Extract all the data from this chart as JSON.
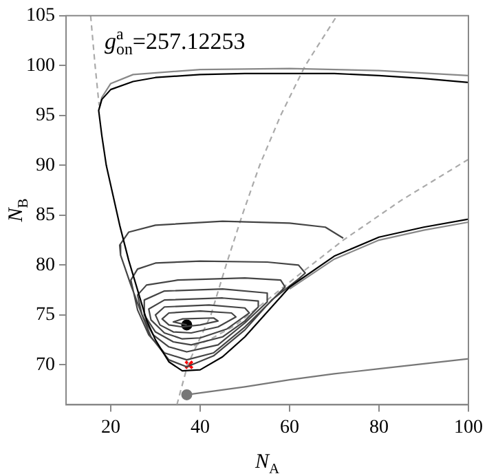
{
  "chart_data": {
    "type": "line",
    "xlabel": "N$_{A}$",
    "ylabel": "N$_{B}$",
    "annotations": [
      "g$_{on}$$^{a}$=257.12253"
    ],
    "xlim": [
      10,
      100
    ],
    "xticks": [
      20,
      40,
      60,
      80,
      100
    ],
    "ylim": [
      66,
      105
    ],
    "yticks": [
      70,
      75,
      80,
      85,
      90,
      95,
      100,
      105
    ],
    "grid": false,
    "legend": false,
    "marker": "none",
    "line_style": "solid",
    "series": [
      {
        "color": "#000000",
        "x": [
          100,
          90,
          80,
          70,
          60,
          50,
          40,
          30,
          25,
          20,
          18,
          17.3,
          18,
          19,
          20.5,
          22,
          24,
          26,
          28,
          30,
          33,
          36,
          40,
          45,
          50,
          55,
          60,
          70,
          80,
          90,
          100
        ],
        "values": [
          98.3,
          98.7,
          99,
          99.2,
          99.2,
          99.2,
          99.1,
          98.8,
          98.4,
          97.6,
          96.6,
          95.5,
          93,
          90,
          87,
          84,
          80.5,
          77.5,
          74.5,
          72.5,
          70.3,
          69.4,
          69.5,
          70.8,
          72.8,
          75.3,
          77.8,
          80.9,
          82.8,
          83.8,
          84.6
        ]
      },
      {
        "color": "#888888",
        "x": [
          100,
          80,
          60,
          40,
          25,
          20,
          18,
          17.5
        ],
        "values": [
          99,
          99.5,
          99.7,
          99.6,
          99.1,
          98.2,
          96.8,
          95.8
        ]
      },
      {
        "color": "#888888",
        "x": [
          60,
          70,
          80,
          90,
          100
        ],
        "values": [
          77.6,
          80.6,
          82.5,
          83.5,
          84.3
        ]
      },
      {
        "color": "#444444",
        "x": [
          72,
          68,
          60,
          45,
          30,
          24,
          22,
          22.2,
          24.5,
          27,
          29,
          33,
          37,
          43,
          50,
          56,
          62,
          63.5,
          62,
          55,
          40,
          30,
          26,
          24.5,
          26,
          28.5,
          32,
          37,
          43,
          50,
          55,
          59,
          58,
          50,
          35,
          28,
          26,
          27,
          29.5,
          33,
          37,
          44,
          50,
          55,
          55,
          45,
          32,
          27.5,
          27.5,
          30,
          34,
          38,
          45,
          50,
          53,
          53,
          45,
          32,
          28.5,
          29,
          32,
          36,
          40,
          46,
          51,
          50,
          42,
          32,
          30,
          31,
          34,
          38,
          44,
          48,
          47,
          40,
          33,
          31.5,
          33,
          36,
          40,
          44,
          43,
          36,
          34,
          37
        ],
        "values": [
          82.7,
          83.8,
          84.2,
          84.4,
          84,
          83.3,
          82,
          81,
          78,
          75,
          72.8,
          70.5,
          69.8,
          70.9,
          73.5,
          76.5,
          78.6,
          79.2,
          80,
          80.3,
          80.4,
          80.2,
          79.6,
          78.5,
          75.5,
          73,
          71.2,
          70.5,
          71.2,
          73.8,
          76,
          77.8,
          78.5,
          78.7,
          78.5,
          78,
          77,
          75,
          73,
          71.8,
          71.3,
          72,
          74.2,
          76.3,
          77.2,
          77.6,
          77.4,
          76.5,
          75,
          73.3,
          72.3,
          72,
          72.8,
          74.4,
          75.8,
          76.4,
          76.7,
          76.5,
          75.6,
          74.5,
          73.2,
          72.6,
          72.7,
          73.6,
          75.2,
          75.7,
          76,
          75.8,
          75,
          74,
          73.3,
          73.2,
          73.8,
          74.8,
          75.2,
          75.4,
          75.2,
          74.6,
          74,
          73.8,
          74,
          74.4,
          74.7,
          74.6,
          74.3,
          74
        ]
      },
      {
        "color": "#aaaaaa",
        "line_style": "dashed",
        "x": [
          34.8,
          37.2,
          42.4,
          45.8,
          49.4,
          53.3,
          58,
          63.5,
          70.6
        ],
        "values": [
          66,
          70,
          75,
          80,
          85,
          90,
          95,
          100,
          105
        ]
      },
      {
        "color": "#aaaaaa",
        "line_style": "dashed",
        "x": [
          15.5,
          16.5,
          17.4
        ],
        "values": [
          105,
          100,
          96
        ]
      },
      {
        "color": "#aaaaaa",
        "line_style": "dashed",
        "x": [
          100,
          85,
          72,
          62,
          55,
          48,
          42,
          38
        ],
        "values": [
          90.6,
          86.5,
          82.5,
          79,
          76.5,
          74,
          72.5,
          71.8
        ]
      },
      {
        "color": "#777777",
        "x": [
          37,
          50,
          60,
          70,
          80,
          90,
          100
        ],
        "values": [
          67,
          67.8,
          68.5,
          69.1,
          69.6,
          70.1,
          70.6
        ]
      },
      {
        "type": "scatter",
        "marker": "circle",
        "color": "#000000",
        "x": [
          37
        ],
        "values": [
          74
        ]
      },
      {
        "type": "scatter",
        "marker": "cross",
        "color": "#ff0000",
        "x": [
          37.5
        ],
        "values": [
          70
        ]
      },
      {
        "type": "scatter",
        "marker": "circle",
        "color": "#777777",
        "x": [
          37
        ],
        "values": [
          67
        ]
      }
    ]
  }
}
